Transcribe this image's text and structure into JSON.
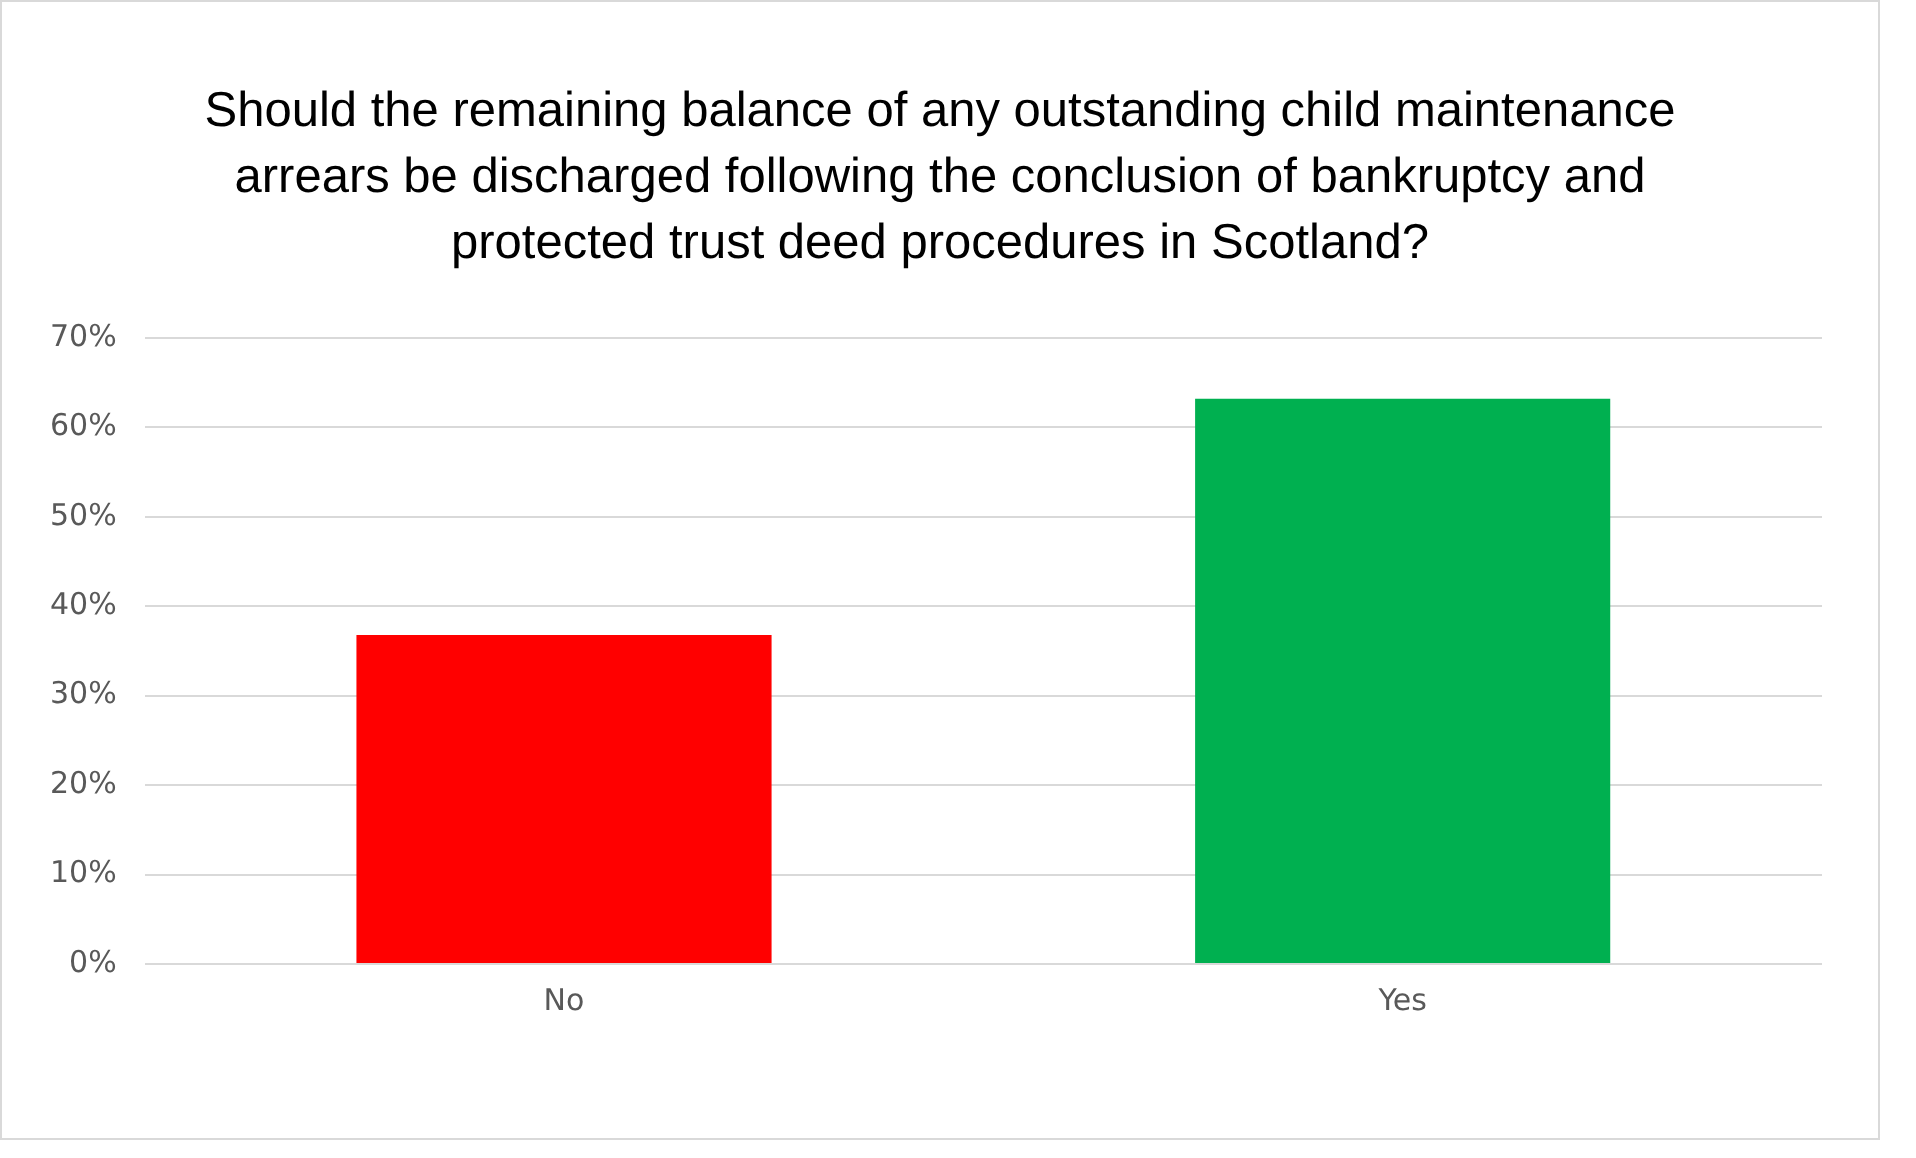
{
  "chart_data": {
    "type": "bar",
    "title": "Should the remaining balance of any outstanding child maintenance arrears be discharged following the conclusion of bankruptcy and protected trust deed procedures in Scotland?",
    "categories": [
      "No",
      "Yes"
    ],
    "values": [
      36.8,
      63.2
    ],
    "colors": [
      "#ff0000",
      "#00b050"
    ],
    "ylim": [
      0,
      70
    ],
    "yticks": [
      {
        "value": 0,
        "label": "0%"
      },
      {
        "value": 10,
        "label": "10%"
      },
      {
        "value": 20,
        "label": "20%"
      },
      {
        "value": 30,
        "label": "30%"
      },
      {
        "value": 40,
        "label": "40%"
      },
      {
        "value": 50,
        "label": "50%"
      },
      {
        "value": 60,
        "label": "60%"
      },
      {
        "value": 70,
        "label": "70%"
      }
    ],
    "grid": "y",
    "legend": false
  }
}
